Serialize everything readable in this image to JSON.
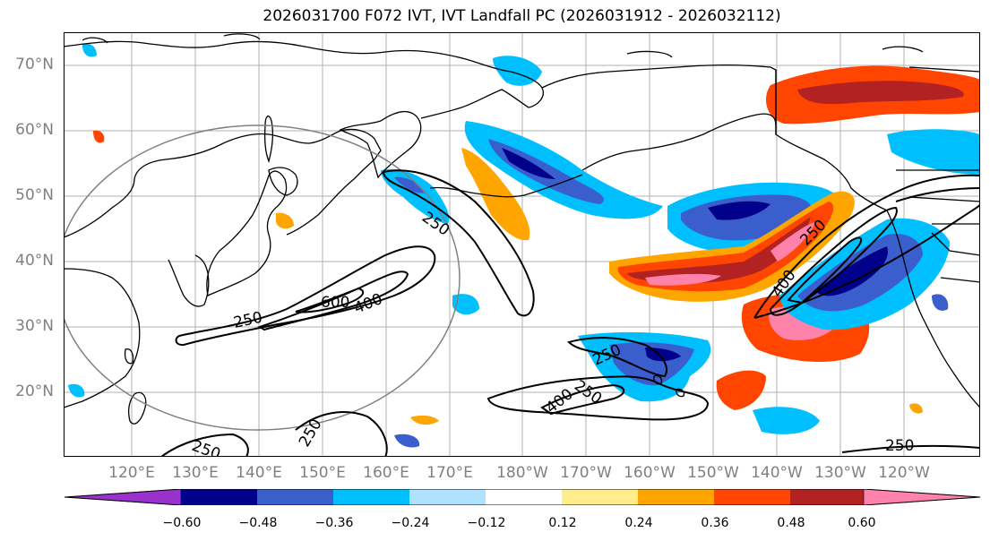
{
  "title": "2026031700 F072 IVT, IVT Landfall PC (2026031912 - 2026032112)",
  "lat_labels": [
    "70°N",
    "60°N",
    "50°N",
    "40°N",
    "30°N",
    "20°N"
  ],
  "lon_labels": [
    "120°E",
    "130°E",
    "140°E",
    "150°E",
    "160°E",
    "170°E",
    "180°W",
    "170°W",
    "160°W",
    "150°W",
    "140°W",
    "130°W",
    "120°W"
  ],
  "contour_labels": [
    "250",
    "250",
    "600",
    "400",
    "250",
    "250",
    "400",
    "400",
    "250",
    "250",
    "250",
    "250"
  ],
  "colorbar": {
    "ticks": [
      "−0.60",
      "−0.48",
      "−0.36",
      "−0.24",
      "−0.12",
      "0.12",
      "0.24",
      "0.36",
      "0.48",
      "0.60"
    ],
    "colors": [
      "#9932CC",
      "#00008B",
      "#3A5FCD",
      "#00BFFF",
      "#B0E2FF",
      "#FFFFFF",
      "#FFEC8B",
      "#FFA500",
      "#FF4500",
      "#B22222",
      "#FF82AB"
    ]
  },
  "colors": {
    "grid": "#b0b0b0",
    "coast": "#000000",
    "contour": "#000000",
    "circle": "#808080"
  }
}
